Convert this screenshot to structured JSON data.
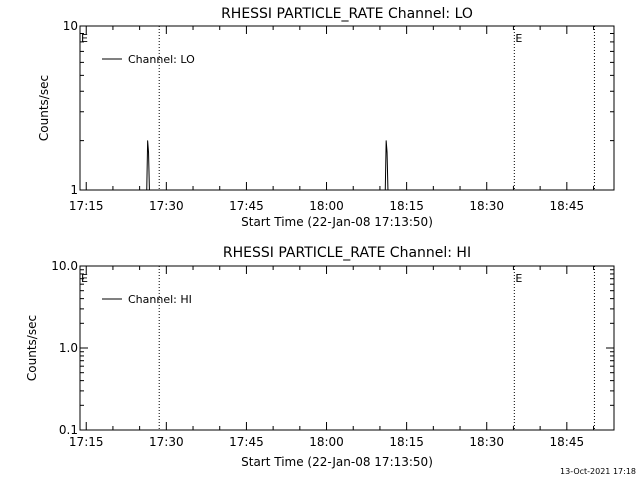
{
  "footer_date": "13-Oct-2021 17:18",
  "chart_data": [
    {
      "type": "line",
      "title": "RHESSI PARTICLE_RATE Channel: LO",
      "xlabel": "Start Time (22-Jan-08 17:13:50)",
      "ylabel": "Counts/sec",
      "yscale": "log",
      "ylim": [
        1,
        10
      ],
      "xlim": [
        "17:13:50",
        "18:53:50"
      ],
      "xticks": [
        "17:15",
        "17:30",
        "17:45",
        "18:00",
        "18:15",
        "18:30",
        "18:45"
      ],
      "yticks": [
        "1",
        "10"
      ],
      "legend": "top-left",
      "series": [
        {
          "name": "Channel: LO",
          "points": [
            {
              "x": "17:26:20",
              "y": 1
            },
            {
              "x": "17:26:30",
              "y": 2
            },
            {
              "x": "17:26:40",
              "y": 1.7
            },
            {
              "x": "17:26:50",
              "y": 1
            },
            {
              "x": "18:11:00",
              "y": 1
            },
            {
              "x": "18:11:10",
              "y": 2
            },
            {
              "x": "18:11:20",
              "y": 1.7
            },
            {
              "x": "18:11:30",
              "y": 1
            }
          ]
        }
      ],
      "vlines": [
        "17:28:40",
        "18:35:10",
        "18:50:10"
      ],
      "markers": [
        {
          "label": "E",
          "x": "17:13:50"
        },
        {
          "label": "E",
          "x": "18:35:10"
        }
      ]
    },
    {
      "type": "line",
      "title": "RHESSI PARTICLE_RATE Channel: HI",
      "xlabel": "Start Time (22-Jan-08 17:13:50)",
      "ylabel": "Counts/sec",
      "yscale": "log",
      "ylim": [
        0.1,
        10
      ],
      "xlim": [
        "17:13:50",
        "18:53:50"
      ],
      "xticks": [
        "17:15",
        "17:30",
        "17:45",
        "18:00",
        "18:15",
        "18:30",
        "18:45"
      ],
      "yticks": [
        "0.1",
        "1.0",
        "10.0"
      ],
      "legend": "top-left",
      "series": [
        {
          "name": "Channel: HI",
          "points": []
        }
      ],
      "vlines": [
        "17:28:40",
        "18:35:10",
        "18:50:10"
      ],
      "markers": [
        {
          "label": "E",
          "x": "17:13:50"
        },
        {
          "label": "E",
          "x": "18:35:10"
        }
      ]
    }
  ]
}
